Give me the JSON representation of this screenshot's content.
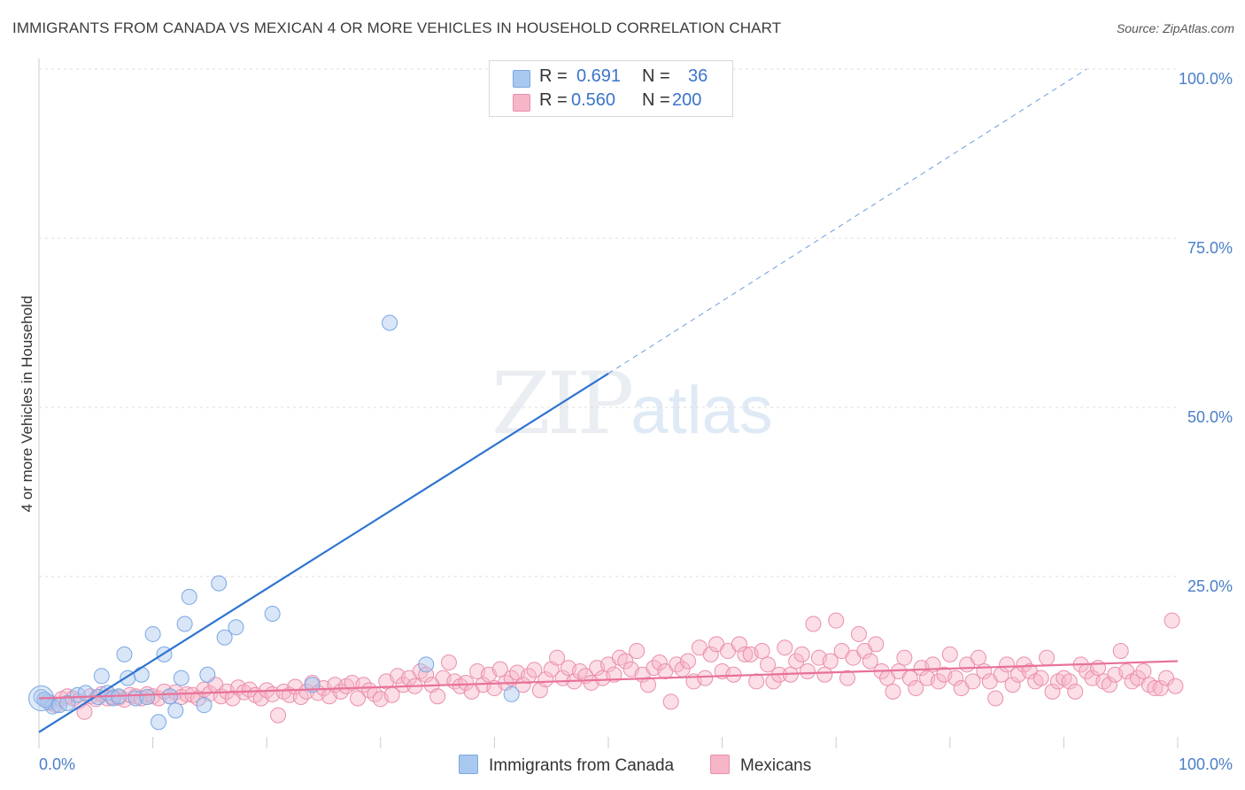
{
  "title": "IMMIGRANTS FROM CANADA VS MEXICAN 4 OR MORE VEHICLES IN HOUSEHOLD CORRELATION CHART",
  "source": "Source: ZipAtlas.com",
  "watermark": {
    "zip": "ZIP",
    "atlas": "atlas"
  },
  "legend": {
    "rows": [
      {
        "r_label": "R =",
        "r_value": "0.691",
        "n_label": "N =",
        "n_value": "36",
        "color": "#a9c8ef"
      },
      {
        "r_label": "R =",
        "r_value": "0.560",
        "n_label": "N =",
        "n_value": "200",
        "color": "#f6b6c8"
      }
    ]
  },
  "bottom_legend": [
    {
      "label": "Immigrants from Canada",
      "color": "#a9c8ef"
    },
    {
      "label": "Mexicans",
      "color": "#f6b6c8"
    }
  ],
  "chart_data": {
    "type": "scatter",
    "title": "IMMIGRANTS FROM CANADA VS MEXICAN 4 OR MORE VEHICLES IN HOUSEHOLD CORRELATION CHART",
    "xlabel": "",
    "ylabel": "4 or more Vehicles in Household",
    "xlim": [
      0,
      100
    ],
    "ylim": [
      0,
      100
    ],
    "x_tick_labels": [
      "0.0%",
      "100.0%"
    ],
    "y_ticks": [
      25,
      50,
      75,
      100
    ],
    "y_tick_labels": [
      "25.0%",
      "50.0%",
      "75.0%",
      "100.0%"
    ],
    "grid": true,
    "series": [
      {
        "name": "Immigrants from Canada",
        "color": "#7aa7e3",
        "fill": "#a9c8ef",
        "trend_color": "#2f74d0",
        "trend": {
          "x0": 0,
          "y0": 2,
          "x1": 50,
          "y1": 55,
          "dash_to": 92,
          "dash_to_y": 100
        },
        "points": [
          [
            0.2,
            7.2
          ],
          [
            0.8,
            6.5
          ],
          [
            1.2,
            5.8
          ],
          [
            1.8,
            6.0
          ],
          [
            2.5,
            6.3
          ],
          [
            3.4,
            7.5
          ],
          [
            4.1,
            7.8
          ],
          [
            5.2,
            7.2
          ],
          [
            5.5,
            10.3
          ],
          [
            6.0,
            7.8
          ],
          [
            6.5,
            7.0
          ],
          [
            7.0,
            7.3
          ],
          [
            7.5,
            13.5
          ],
          [
            7.8,
            10.0
          ],
          [
            8.5,
            7.0
          ],
          [
            9.0,
            10.5
          ],
          [
            9.5,
            7.2
          ],
          [
            10.0,
            16.5
          ],
          [
            10.5,
            3.5
          ],
          [
            11.0,
            13.5
          ],
          [
            11.5,
            7.3
          ],
          [
            12.0,
            5.2
          ],
          [
            12.5,
            10.0
          ],
          [
            12.8,
            18.0
          ],
          [
            13.2,
            22.0
          ],
          [
            14.5,
            6.0
          ],
          [
            14.8,
            10.5
          ],
          [
            15.8,
            24.0
          ],
          [
            16.3,
            16.0
          ],
          [
            17.3,
            17.5
          ],
          [
            20.5,
            19.5
          ],
          [
            24.0,
            9.0
          ],
          [
            30.8,
            62.5
          ],
          [
            34.0,
            12.0
          ],
          [
            41.5,
            7.6
          ],
          [
            0.5,
            6.8
          ]
        ]
      },
      {
        "name": "Mexicans",
        "color": "#ea8fab",
        "fill": "#f6b6c8",
        "trend_color": "#e8719a",
        "trend": {
          "x0": 0,
          "y0": 7.0,
          "x1": 100,
          "y1": 12.5
        },
        "points": [
          [
            0.5,
            6.8
          ],
          [
            1.0,
            6.3
          ],
          [
            1.5,
            6.0
          ],
          [
            2.0,
            6.9
          ],
          [
            2.5,
            7.3
          ],
          [
            3.0,
            7.0
          ],
          [
            3.5,
            6.6
          ],
          [
            4.0,
            5.0
          ],
          [
            4.5,
            7.3
          ],
          [
            5.0,
            6.9
          ],
          [
            5.5,
            7.6
          ],
          [
            6.0,
            7.0
          ],
          [
            6.5,
            7.2
          ],
          [
            7.0,
            7.1
          ],
          [
            7.5,
            6.8
          ],
          [
            8.0,
            7.5
          ],
          [
            8.5,
            7.3
          ],
          [
            9.0,
            7.0
          ],
          [
            9.5,
            7.6
          ],
          [
            10.0,
            7.3
          ],
          [
            10.5,
            7.0
          ],
          [
            11.0,
            8.0
          ],
          [
            11.5,
            7.3
          ],
          [
            12.0,
            7.9
          ],
          [
            12.5,
            7.2
          ],
          [
            13.0,
            7.6
          ],
          [
            13.5,
            7.5
          ],
          [
            14.0,
            7.0
          ],
          [
            14.5,
            8.3
          ],
          [
            15.0,
            7.7
          ],
          [
            15.5,
            9.0
          ],
          [
            16.0,
            7.3
          ],
          [
            16.5,
            8.0
          ],
          [
            17.0,
            7.0
          ],
          [
            17.5,
            8.6
          ],
          [
            18.0,
            7.9
          ],
          [
            18.5,
            8.3
          ],
          [
            19.0,
            7.5
          ],
          [
            19.5,
            7.0
          ],
          [
            20.0,
            8.2
          ],
          [
            20.5,
            7.6
          ],
          [
            21.0,
            4.5
          ],
          [
            21.5,
            8.0
          ],
          [
            22.0,
            7.5
          ],
          [
            22.5,
            8.7
          ],
          [
            23.0,
            7.2
          ],
          [
            23.5,
            8.0
          ],
          [
            24.0,
            9.3
          ],
          [
            24.5,
            7.8
          ],
          [
            25.0,
            8.5
          ],
          [
            25.5,
            7.3
          ],
          [
            26.0,
            9.0
          ],
          [
            26.5,
            8.0
          ],
          [
            27.0,
            8.8
          ],
          [
            27.5,
            9.3
          ],
          [
            28.0,
            7.0
          ],
          [
            28.5,
            9.0
          ],
          [
            29.0,
            8.2
          ],
          [
            29.5,
            7.6
          ],
          [
            30.0,
            6.9
          ],
          [
            30.5,
            9.5
          ],
          [
            31.0,
            7.5
          ],
          [
            31.5,
            10.3
          ],
          [
            32.0,
            9.0
          ],
          [
            32.5,
            10.0
          ],
          [
            33.0,
            8.8
          ],
          [
            33.5,
            11.0
          ],
          [
            34.0,
            10.5
          ],
          [
            34.5,
            9.0
          ],
          [
            35.0,
            7.3
          ],
          [
            35.5,
            10.0
          ],
          [
            36.0,
            12.3
          ],
          [
            36.5,
            9.5
          ],
          [
            37.0,
            8.8
          ],
          [
            37.5,
            9.3
          ],
          [
            38.0,
            8.0
          ],
          [
            38.5,
            11.0
          ],
          [
            39.0,
            9.0
          ],
          [
            39.5,
            10.5
          ],
          [
            40.0,
            8.5
          ],
          [
            40.5,
            11.3
          ],
          [
            41.0,
            9.3
          ],
          [
            41.5,
            10.0
          ],
          [
            42.0,
            10.8
          ],
          [
            42.5,
            9.0
          ],
          [
            43.0,
            10.3
          ],
          [
            43.5,
            11.2
          ],
          [
            44.0,
            8.2
          ],
          [
            44.5,
            9.8
          ],
          [
            45.0,
            11.3
          ],
          [
            45.5,
            13.0
          ],
          [
            46.0,
            10.0
          ],
          [
            46.5,
            11.5
          ],
          [
            47.0,
            9.5
          ],
          [
            47.5,
            11.0
          ],
          [
            48.0,
            10.3
          ],
          [
            48.5,
            9.3
          ],
          [
            49.0,
            11.5
          ],
          [
            49.5,
            10.0
          ],
          [
            50.0,
            12.0
          ],
          [
            50.5,
            10.5
          ],
          [
            51.0,
            13.0
          ],
          [
            51.5,
            12.5
          ],
          [
            52.0,
            11.3
          ],
          [
            52.5,
            14.0
          ],
          [
            53.0,
            10.5
          ],
          [
            53.5,
            9.0
          ],
          [
            54.0,
            11.5
          ],
          [
            54.5,
            12.3
          ],
          [
            55.0,
            11.0
          ],
          [
            55.5,
            6.5
          ],
          [
            56.0,
            12.0
          ],
          [
            56.5,
            11.3
          ],
          [
            57.0,
            12.5
          ],
          [
            57.5,
            9.5
          ],
          [
            58.0,
            14.5
          ],
          [
            58.5,
            10.0
          ],
          [
            59.0,
            13.5
          ],
          [
            59.5,
            15.0
          ],
          [
            60.0,
            11.0
          ],
          [
            60.5,
            14.0
          ],
          [
            61.0,
            10.5
          ],
          [
            61.5,
            15.0
          ],
          [
            62.0,
            13.5
          ],
          [
            62.5,
            13.5
          ],
          [
            63.0,
            9.5
          ],
          [
            63.5,
            14.0
          ],
          [
            64.0,
            12.0
          ],
          [
            64.5,
            9.5
          ],
          [
            65.0,
            10.5
          ],
          [
            65.5,
            14.5
          ],
          [
            66.0,
            10.5
          ],
          [
            66.5,
            12.5
          ],
          [
            67.0,
            13.5
          ],
          [
            67.5,
            11.0
          ],
          [
            68.0,
            18.0
          ],
          [
            68.5,
            13.0
          ],
          [
            69.0,
            10.5
          ],
          [
            69.5,
            12.5
          ],
          [
            70.0,
            18.5
          ],
          [
            70.5,
            14.0
          ],
          [
            71.0,
            10.0
          ],
          [
            71.5,
            13.0
          ],
          [
            72.0,
            16.5
          ],
          [
            72.5,
            14.0
          ],
          [
            73.0,
            12.5
          ],
          [
            73.5,
            15.0
          ],
          [
            74.0,
            11.0
          ],
          [
            74.5,
            10.0
          ],
          [
            75.0,
            8.0
          ],
          [
            75.5,
            11.0
          ],
          [
            76.0,
            13.0
          ],
          [
            76.5,
            10.0
          ],
          [
            77.0,
            8.5
          ],
          [
            77.5,
            11.5
          ],
          [
            78.0,
            10.0
          ],
          [
            78.5,
            12.0
          ],
          [
            79.0,
            9.5
          ],
          [
            79.5,
            10.5
          ],
          [
            80.0,
            13.5
          ],
          [
            80.5,
            10.0
          ],
          [
            81.0,
            8.5
          ],
          [
            81.5,
            12.0
          ],
          [
            82.0,
            9.5
          ],
          [
            82.5,
            13.0
          ],
          [
            83.0,
            11.0
          ],
          [
            83.5,
            9.5
          ],
          [
            84.0,
            7.0
          ],
          [
            84.5,
            10.5
          ],
          [
            85.0,
            12.0
          ],
          [
            85.5,
            9.0
          ],
          [
            86.0,
            10.5
          ],
          [
            86.5,
            12.0
          ],
          [
            87.0,
            11.0
          ],
          [
            87.5,
            9.5
          ],
          [
            88.0,
            10.0
          ],
          [
            88.5,
            13.0
          ],
          [
            89.0,
            8.0
          ],
          [
            89.5,
            9.5
          ],
          [
            90.0,
            10.0
          ],
          [
            90.5,
            9.5
          ],
          [
            91.0,
            8.0
          ],
          [
            91.5,
            12.0
          ],
          [
            92.0,
            11.0
          ],
          [
            92.5,
            10.0
          ],
          [
            93.0,
            11.5
          ],
          [
            93.5,
            9.5
          ],
          [
            94.0,
            9.0
          ],
          [
            94.5,
            10.5
          ],
          [
            95.0,
            14.0
          ],
          [
            95.5,
            11.0
          ],
          [
            96.0,
            9.5
          ],
          [
            96.5,
            10.0
          ],
          [
            97.0,
            11.0
          ],
          [
            97.5,
            9.0
          ],
          [
            98.0,
            8.5
          ],
          [
            98.5,
            8.5
          ],
          [
            99.0,
            10.0
          ],
          [
            99.5,
            18.5
          ],
          [
            99.8,
            8.8
          ]
        ]
      }
    ]
  }
}
